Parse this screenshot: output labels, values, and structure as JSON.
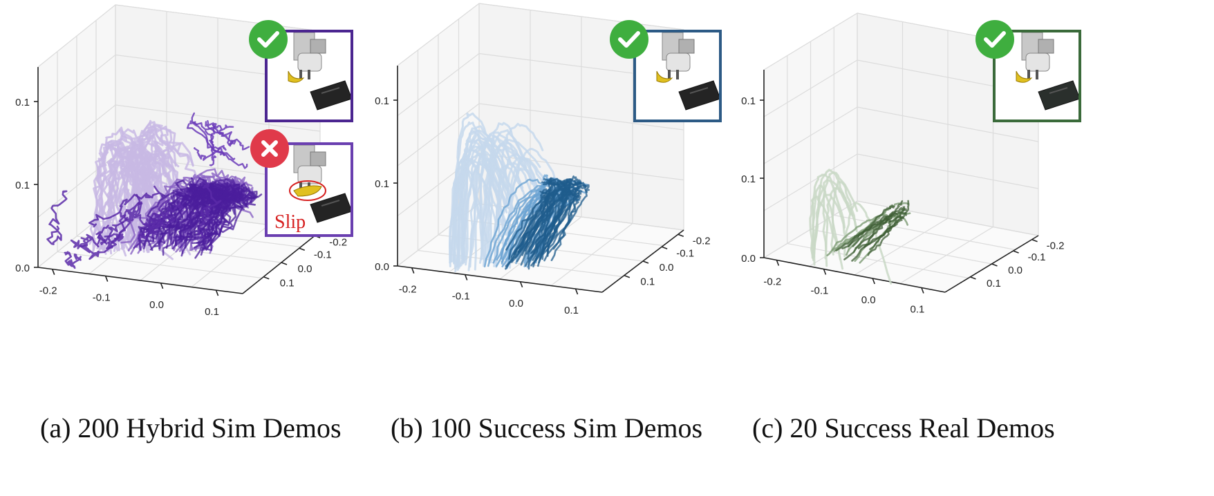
{
  "figure": {
    "captions": [
      "(a) 200 Hybrid Sim Demos",
      "(b) 100 Success Sim Demos",
      "(c) 20 Success Real Demos"
    ]
  },
  "chart_data": [
    {
      "type": "line3d",
      "caption": "(a) 200 Hybrid Sim Demos",
      "x_ticks": [
        "-0.2",
        "-0.1",
        "0.0",
        "0.1"
      ],
      "y_ticks": [
        "-0.2",
        "-0.1",
        "0.0",
        "0.1"
      ],
      "z_ticks": [
        "0.0",
        "0.1",
        "0.1"
      ],
      "colors": {
        "light": "#c8b8e4",
        "mid": "#8a63c4",
        "dark": "#4b1e9c"
      },
      "trajectory_count": 200,
      "insets": [
        {
          "status": "success",
          "border": "#4b2590"
        },
        {
          "status": "failure",
          "border": "#6a3fb0",
          "label": "Slip"
        }
      ]
    },
    {
      "type": "line3d",
      "caption": "(b) 100 Success Sim Demos",
      "x_ticks": [
        "-0.2",
        "-0.1",
        "0.0",
        "0.1"
      ],
      "y_ticks": [
        "-0.2",
        "-0.1",
        "0.0",
        "0.1"
      ],
      "z_ticks": [
        "0.0",
        "0.1",
        "0.1"
      ],
      "colors": {
        "light": "#c6d8ec",
        "mid": "#6aa3d2",
        "dark": "#1f5c8c"
      },
      "trajectory_count": 100,
      "insets": [
        {
          "status": "success",
          "border": "#2c5a85"
        }
      ]
    },
    {
      "type": "line3d",
      "caption": "(c) 20 Success Real Demos",
      "x_ticks": [
        "-0.2",
        "-0.1",
        "0.0",
        "0.1"
      ],
      "y_ticks": [
        "-0.2",
        "-0.1",
        "0.0",
        "0.1"
      ],
      "z_ticks": [
        "0.0",
        "0.1",
        "0.1"
      ],
      "colors": {
        "light": "#c9d8c6",
        "mid": "#7d9b74",
        "dark": "#3d5e34"
      },
      "trajectory_count": 20,
      "insets": [
        {
          "status": "success",
          "border": "#3a6a3a"
        }
      ]
    }
  ]
}
